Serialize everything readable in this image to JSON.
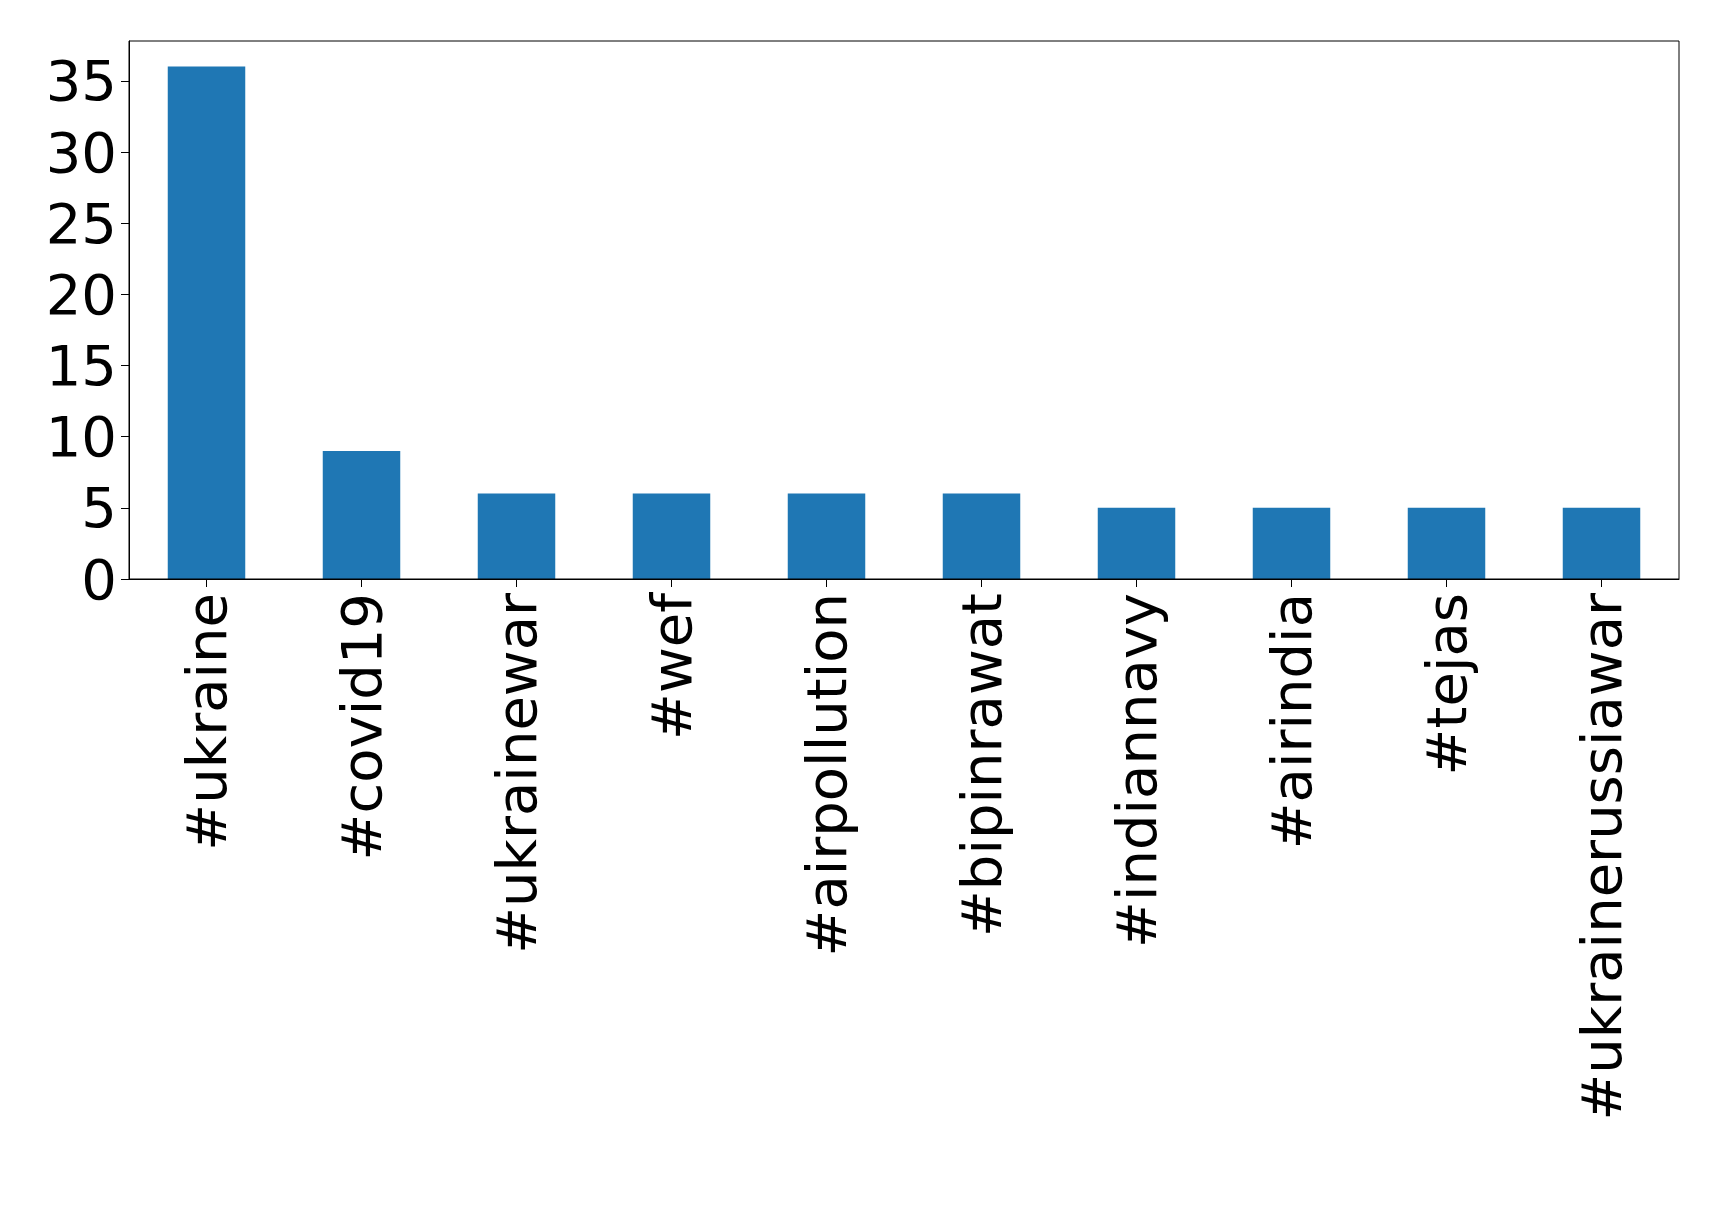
{
  "chart_data": {
    "type": "bar",
    "categories": [
      "#ukraine",
      "#covid19",
      "#ukrainewar",
      "#wef",
      "#airpollution",
      "#bipinrawat",
      "#indiannavy",
      "#airindia",
      "#tejas",
      "#ukrainerussiawar"
    ],
    "values": [
      36,
      9,
      6,
      6,
      6,
      6,
      5,
      5,
      5,
      5
    ],
    "color": "#1f77b4",
    "ylim": [
      0,
      37.8
    ],
    "yticks": [
      0,
      5,
      10,
      15,
      20,
      25,
      30,
      35
    ],
    "grid": false
  }
}
